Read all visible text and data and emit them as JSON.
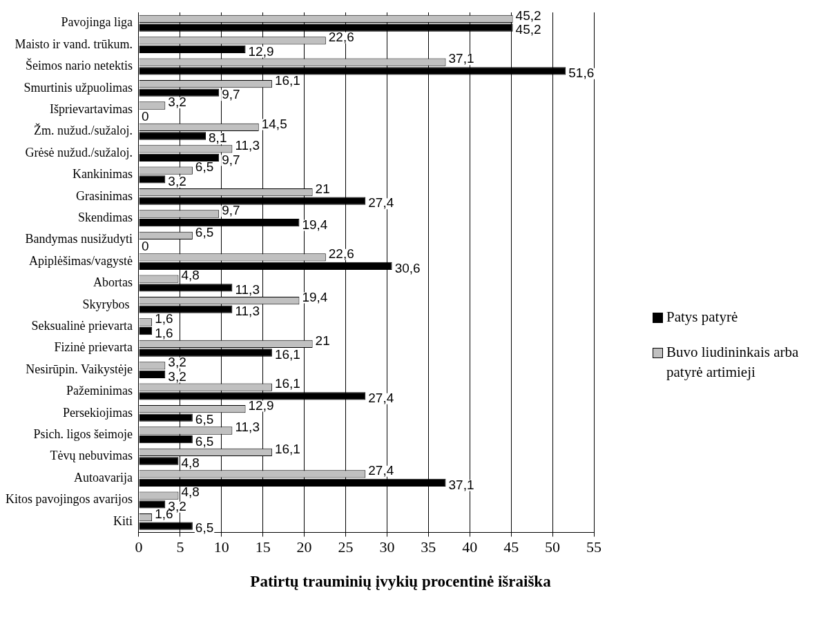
{
  "chart_data": {
    "type": "bar",
    "orientation": "horizontal",
    "xlabel": "Patirtų trauminių įvykių procentinė išraiška",
    "categories": [
      "Pavojinga liga",
      "Maisto ir vand. trūkum.",
      "Šeimos nario netektis",
      "Smurtinis užpuolimas",
      "Išprievartavimas",
      "Žm. nužud./sužaloj.",
      "Grėsė nužud./sužaloj.",
      "Kankinimas",
      "Grasinimas",
      "Skendimas",
      "Bandymas nusižudyti",
      "Apiplėšimas/vagystė",
      "Abortas",
      "Skyrybos ",
      "Seksualinė prievarta",
      "Fizinė prievarta",
      "Nesirūpin. Vaikystėje",
      "Pažeminimas",
      "Persekiojimas",
      "Psich. ligos šeimoje",
      "Tėvų nebuvimas",
      "Autoavarija",
      "Kitos pavojingos avarijos",
      "Kiti"
    ],
    "series": [
      {
        "name": "Buvo liudininkais arba patyrė artimieji",
        "color": "#c0c0c0",
        "values": [
          45.2,
          22.6,
          37.1,
          16.1,
          3.2,
          14.5,
          11.3,
          6.5,
          21,
          9.7,
          6.5,
          22.6,
          4.8,
          19.4,
          1.6,
          21,
          3.2,
          16.1,
          12.9,
          11.3,
          16.1,
          27.4,
          4.8,
          1.6
        ],
        "value_labels": [
          "45,2",
          "22,6",
          "37,1",
          "16,1",
          "3,2",
          "14,5",
          "11,3",
          "6,5",
          "21",
          "9,7",
          "6,5",
          "22,6",
          "4,8",
          "19,4",
          "1,6",
          "21",
          "3,2",
          "16,1",
          "12,9",
          "11,3",
          "16,1",
          "27,4",
          "4,8",
          "1,6"
        ]
      },
      {
        "name": "Patys patyrė",
        "color": "#000000",
        "values": [
          45.2,
          12.9,
          51.6,
          9.7,
          0,
          8.1,
          9.7,
          3.2,
          27.4,
          19.4,
          0,
          30.6,
          11.3,
          11.3,
          1.6,
          16.1,
          3.2,
          27.4,
          6.5,
          6.5,
          4.8,
          37.1,
          3.2,
          6.5
        ],
        "value_labels": [
          "45,2",
          "12,9",
          "51,6",
          "9,7",
          "0",
          "8,1",
          "9,7",
          "3,2",
          "27,4",
          "19,4",
          "0",
          "30,6",
          "11,3",
          "11,3",
          "1,6",
          "16,1",
          "3,2",
          "27,4",
          "6,5",
          "6,5",
          "4,8",
          "37,1",
          "3,2",
          "6,5"
        ]
      }
    ],
    "xlim": [
      0,
      55
    ],
    "xticks": [
      0,
      5,
      10,
      15,
      20,
      25,
      30,
      35,
      40,
      45,
      50,
      55
    ],
    "grid": "x",
    "legend": "right"
  }
}
